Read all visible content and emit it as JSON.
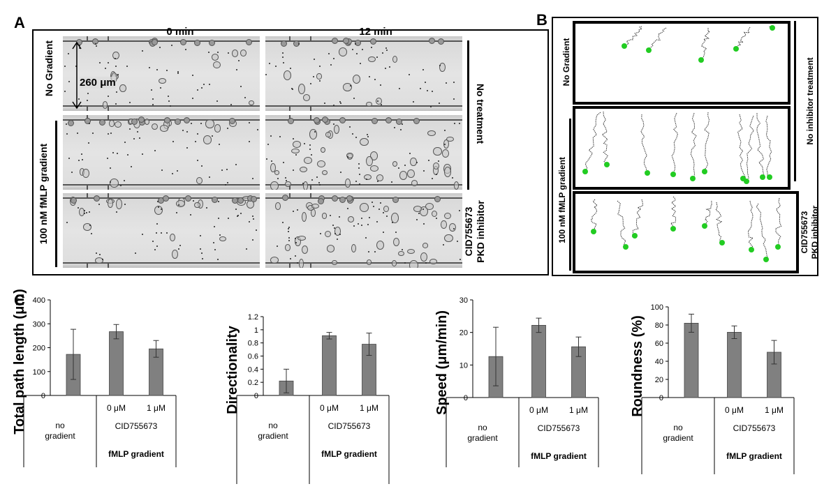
{
  "panels": {
    "a": {
      "letter": "A",
      "col_headers": [
        "0 min",
        "12 min"
      ],
      "scale_label": "260 μm",
      "row_labels": {
        "no_gradient": "No Gradient",
        "fmlp_gradient": "100 nM fMLP gradient"
      },
      "right_labels": {
        "no_treatment": "No treatment",
        "inhibitor_line1": "CID755673",
        "inhibitor_line2": "PKD inhibitor"
      }
    },
    "b": {
      "letter": "B",
      "row_labels": {
        "no_gradient": "No Gradient",
        "fmlp_gradient": "100 nM fMLP gradient"
      },
      "right_labels": {
        "no_inhibitor": "No inhibitor treatment",
        "inhibitor_line1": "CID755673",
        "inhibitor_line2": "PKD inhibitor"
      }
    },
    "c": {
      "letter": "C"
    }
  },
  "chart_data": [
    {
      "type": "bar",
      "ylabel": "Total path length (μm)",
      "ylim": [
        0,
        400
      ],
      "yticks": [
        0,
        100,
        200,
        300,
        400
      ],
      "categories": [
        "no gradient",
        "0 μM",
        "1 μM"
      ],
      "values": [
        172,
        267,
        195
      ],
      "errors": [
        105,
        30,
        35
      ],
      "group_labels": {
        "no_line1": "no",
        "no_line2": "gradient",
        "drug": "CID755673",
        "gradient": "fMLP gradient"
      }
    },
    {
      "type": "bar",
      "ylabel": "Directionality",
      "ylim": [
        0,
        1.2
      ],
      "yticks": [
        0,
        0.2,
        0.4,
        0.6,
        0.8,
        1,
        1.2
      ],
      "categories": [
        "no gradient",
        "0 μM",
        "1 μM"
      ],
      "values": [
        0.22,
        0.91,
        0.78
      ],
      "errors": [
        0.18,
        0.05,
        0.17
      ],
      "group_labels": {
        "no_line1": "no",
        "no_line2": "gradient",
        "drug": "CID755673",
        "gradient": "fMLP gradient"
      }
    },
    {
      "type": "bar",
      "ylabel": "Speed (μm/min)",
      "ylim": [
        0,
        30
      ],
      "yticks": [
        0,
        10,
        20,
        30
      ],
      "categories": [
        "no gradient",
        "0 μM",
        "1 μM"
      ],
      "values": [
        12.6,
        22.2,
        15.6
      ],
      "errors": [
        9,
        2.2,
        3
      ],
      "group_labels": {
        "no_line1": "no",
        "no_line2": "gradient",
        "drug": "CID755673",
        "gradient": "fMLP gradient"
      }
    },
    {
      "type": "bar",
      "ylabel": "Roundness (%)",
      "ylim": [
        0,
        100
      ],
      "yticks": [
        0,
        20,
        40,
        60,
        80,
        100
      ],
      "categories": [
        "no gradient",
        "0 μM",
        "1 μM"
      ],
      "values": [
        82,
        72,
        50
      ],
      "errors": [
        10,
        7,
        13
      ],
      "group_labels": {
        "no_line1": "no",
        "no_line2": "gradient",
        "drug": "CID755673",
        "gradient": "fMLP gradient"
      }
    }
  ],
  "colors": {
    "bar": "#808080",
    "track_head": "#22cc22"
  }
}
